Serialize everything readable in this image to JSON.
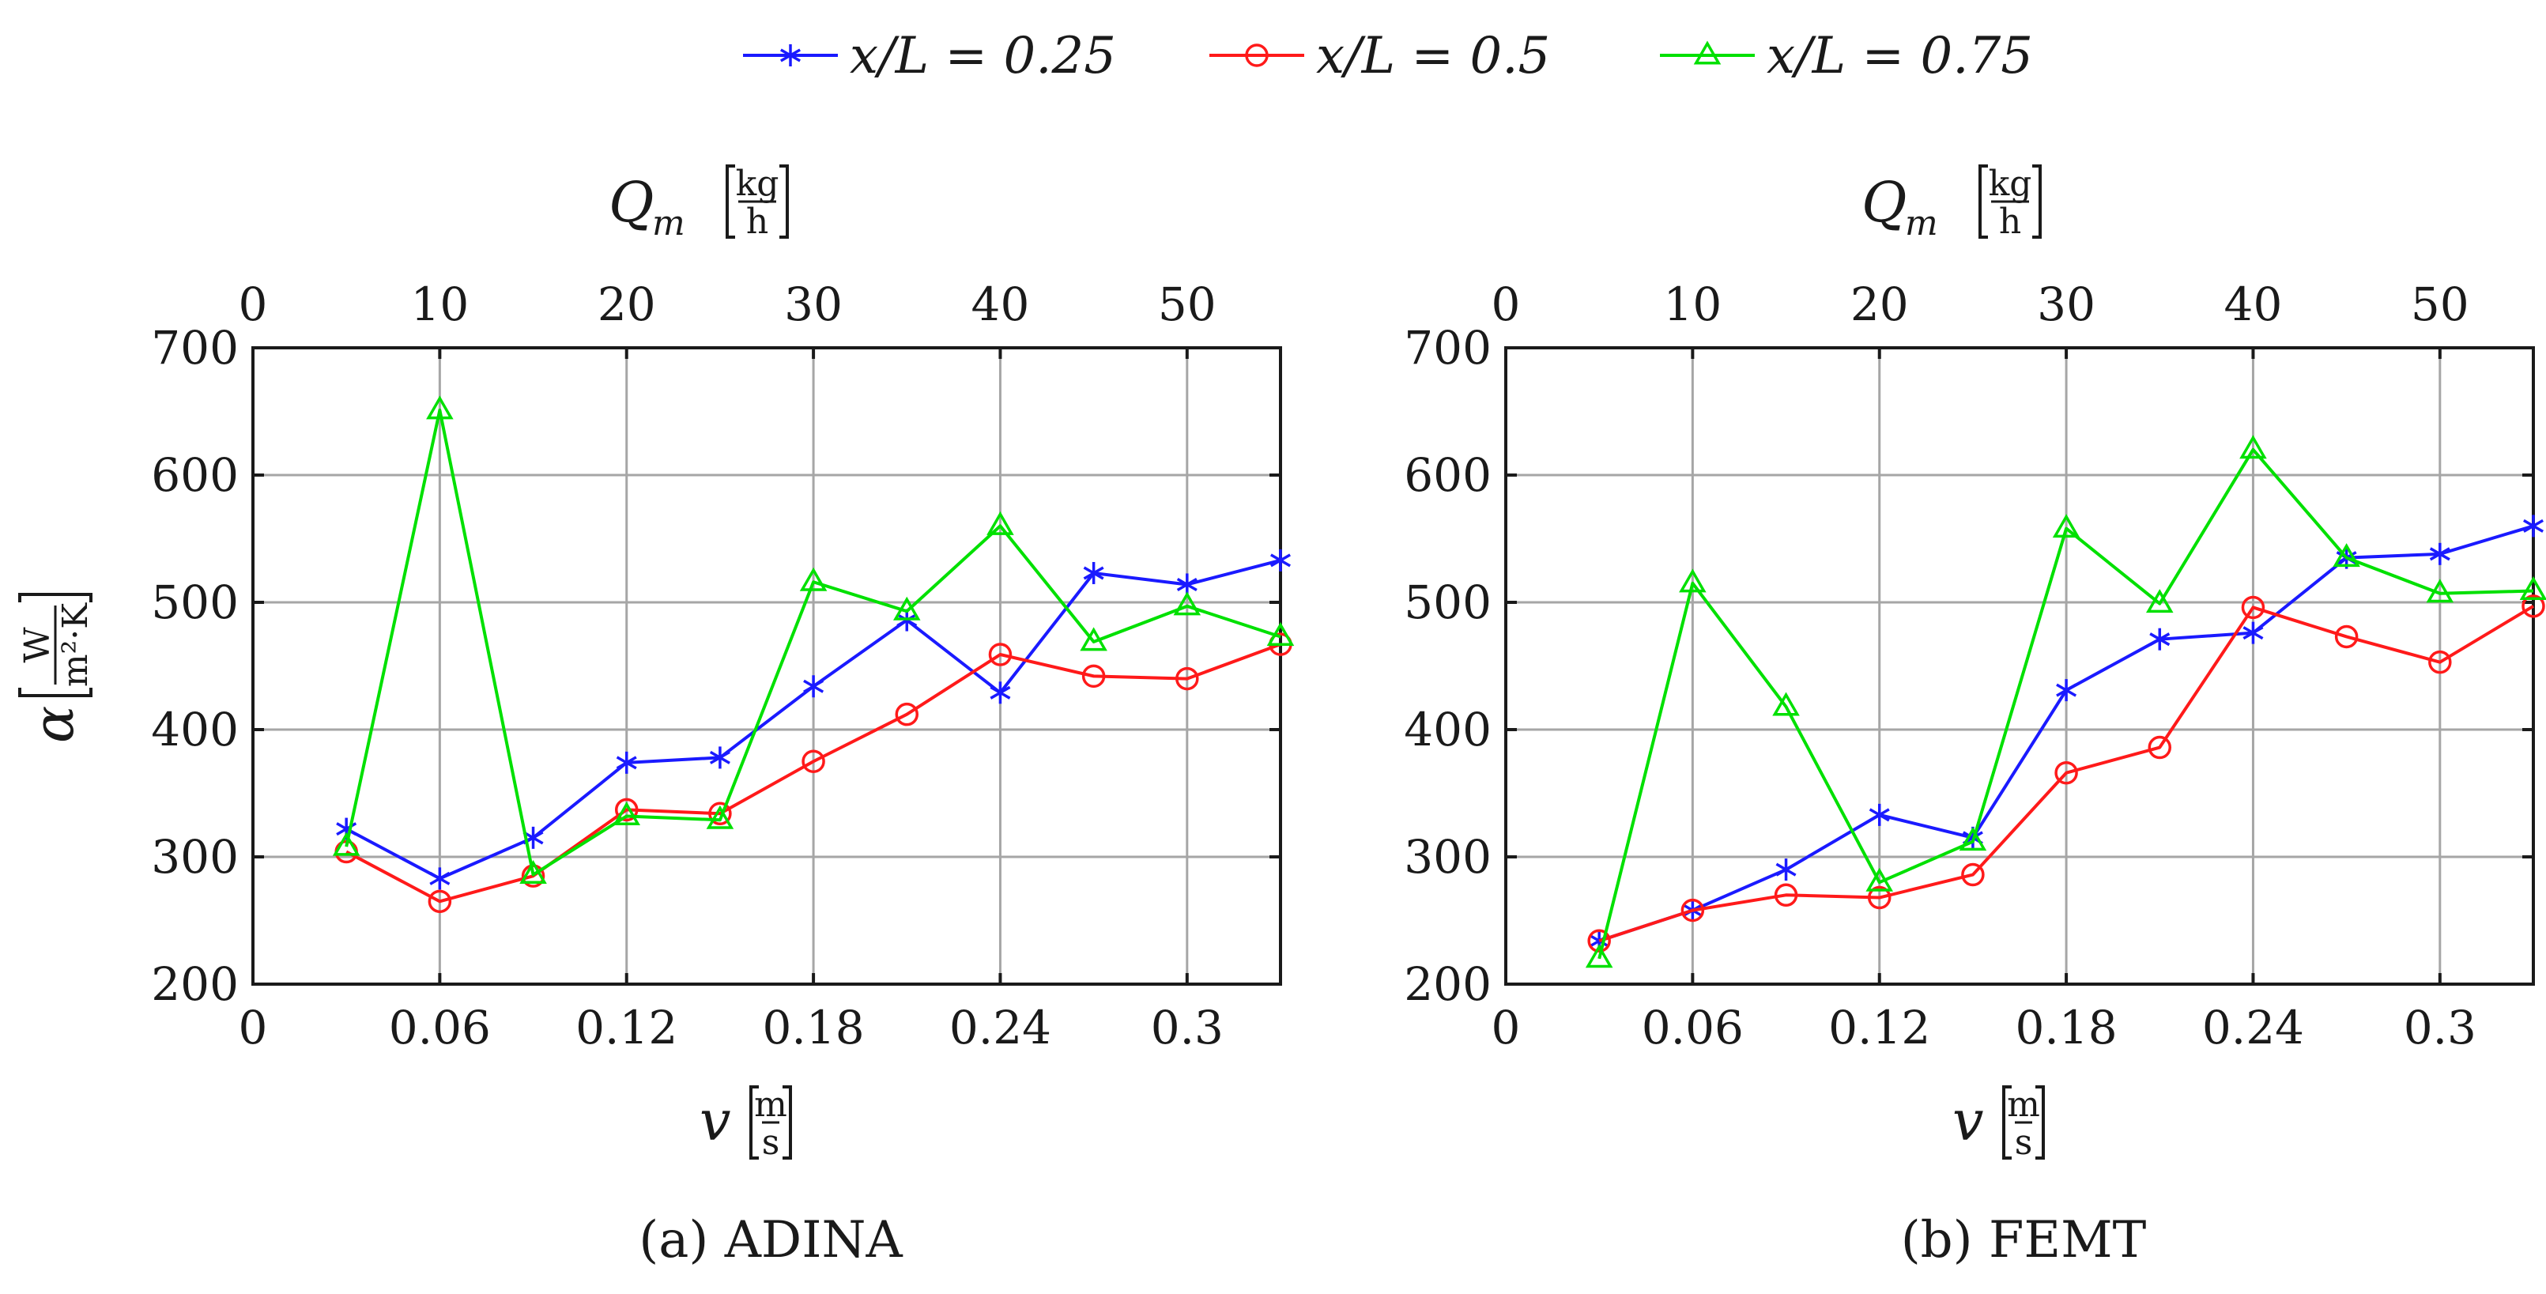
{
  "legend": [
    {
      "label": "x/L = 0.25",
      "color": "#1a1aff",
      "marker": "asterisk"
    },
    {
      "label": "x/L = 0.5",
      "color": "#ff1a1a",
      "marker": "circle"
    },
    {
      "label": "x/L = 0.75",
      "color": "#00e000",
      "marker": "triangle"
    }
  ],
  "chart_data": [
    {
      "type": "line",
      "caption": "(a) ADINA",
      "xlabel": "v",
      "xunit_num": "m",
      "xunit_den": "s",
      "ylabel": "α",
      "yunit_num": "W",
      "yunit_den": "m²·K",
      "top_xlabel": "Q",
      "top_xlabel_sub": "m",
      "top_xunit_num": "kg",
      "top_xunit_den": "h",
      "xlim": [
        0,
        0.33
      ],
      "ylim": [
        200,
        700
      ],
      "xticks": [
        0,
        0.06,
        0.12,
        0.18,
        0.24,
        0.3
      ],
      "xtick_labels": [
        "0",
        "0.06",
        "0.12",
        "0.18",
        "0.24",
        "0.3"
      ],
      "top_xlim": [
        0,
        55
      ],
      "top_xticks": [
        0,
        10,
        20,
        30,
        40,
        50
      ],
      "top_xtick_labels": [
        "0",
        "10",
        "20",
        "30",
        "40",
        "50"
      ],
      "yticks": [
        200,
        300,
        400,
        500,
        600,
        700
      ],
      "ytick_labels": [
        "200",
        "300",
        "400",
        "500",
        "600",
        "700"
      ],
      "x": [
        0.03,
        0.06,
        0.09,
        0.12,
        0.15,
        0.18,
        0.21,
        0.24,
        0.27,
        0.3,
        0.33
      ],
      "series": [
        {
          "name": "x/L = 0.25",
          "values": [
            322,
            283,
            315,
            374,
            378,
            434,
            486,
            429,
            523,
            514,
            533
          ]
        },
        {
          "name": "x/L = 0.5",
          "values": [
            304,
            265,
            285,
            337,
            334,
            375,
            412,
            459,
            442,
            440,
            467
          ]
        },
        {
          "name": "x/L = 0.75",
          "values": [
            308,
            651,
            286,
            332,
            329,
            516,
            493,
            560,
            469,
            497,
            473
          ]
        }
      ]
    },
    {
      "type": "line",
      "caption": "(b) FEMT",
      "xlabel": "v",
      "xunit_num": "m",
      "xunit_den": "s",
      "ylabel": "",
      "yunit_num": "",
      "yunit_den": "",
      "top_xlabel": "Q",
      "top_xlabel_sub": "m",
      "top_xunit_num": "kg",
      "top_xunit_den": "h",
      "xlim": [
        0,
        0.33
      ],
      "ylim": [
        200,
        700
      ],
      "xticks": [
        0,
        0.06,
        0.12,
        0.18,
        0.24,
        0.3
      ],
      "xtick_labels": [
        "0",
        "0.06",
        "0.12",
        "0.18",
        "0.24",
        "0.3"
      ],
      "top_xlim": [
        0,
        55
      ],
      "top_xticks": [
        0,
        10,
        20,
        30,
        40,
        50
      ],
      "top_xtick_labels": [
        "0",
        "10",
        "20",
        "30",
        "40",
        "50"
      ],
      "yticks": [
        200,
        300,
        400,
        500,
        600,
        700
      ],
      "ytick_labels": [
        "200",
        "300",
        "400",
        "500",
        "600",
        "700"
      ],
      "x": [
        0.03,
        0.06,
        0.09,
        0.12,
        0.15,
        0.18,
        0.21,
        0.24,
        0.27,
        0.3,
        0.33
      ],
      "series": [
        {
          "name": "x/L = 0.25",
          "values": [
            234,
            258,
            290,
            333,
            315,
            431,
            471,
            476,
            535,
            538,
            560
          ]
        },
        {
          "name": "x/L = 0.5",
          "values": [
            234,
            258,
            270,
            268,
            286,
            366,
            386,
            496,
            473,
            453,
            497
          ]
        },
        {
          "name": "x/L = 0.75",
          "values": [
            220,
            515,
            418,
            280,
            312,
            558,
            499,
            620,
            535,
            507,
            509
          ]
        }
      ]
    }
  ]
}
